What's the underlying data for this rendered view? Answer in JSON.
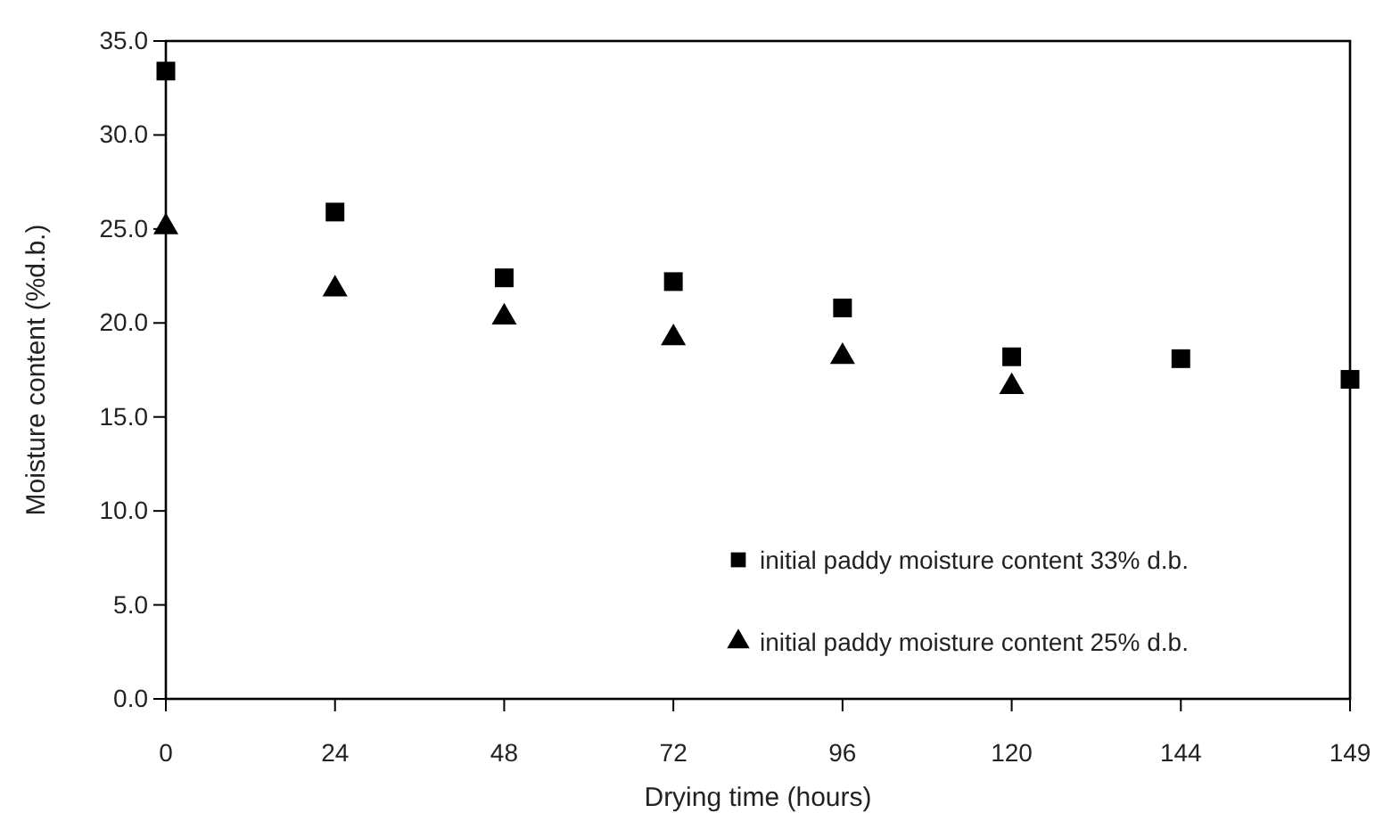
{
  "chart_data": {
    "type": "scatter",
    "xlabel": "Drying time (hours)",
    "ylabel": "Moisture content (%d.b.)",
    "categories": [
      "0",
      "24",
      "48",
      "72",
      "96",
      "120",
      "144",
      "149"
    ],
    "ylim": [
      0,
      35
    ],
    "yticks": [
      {
        "value": 0,
        "label": "0.0"
      },
      {
        "value": 5,
        "label": "5.0"
      },
      {
        "value": 10,
        "label": "10.0"
      },
      {
        "value": 15,
        "label": "15.0"
      },
      {
        "value": 20,
        "label": "20.0"
      },
      {
        "value": 25,
        "label": "25.0"
      },
      {
        "value": 30,
        "label": "30.0"
      },
      {
        "value": 35,
        "label": "35.0"
      }
    ],
    "legend": "bottom right",
    "grid": false,
    "series": [
      {
        "name": "initial paddy moisture content 33% d.b.",
        "color": "#000000",
        "marker": "square",
        "values": [
          33.4,
          25.9,
          22.4,
          22.2,
          20.8,
          18.2,
          18.1,
          17.0
        ]
      },
      {
        "name": "initial paddy moisture content 25% d.b.",
        "color": "#000000",
        "marker": "triangle",
        "values": [
          25.1,
          21.8,
          20.3,
          19.2,
          18.2,
          16.6,
          null,
          null
        ]
      }
    ]
  }
}
